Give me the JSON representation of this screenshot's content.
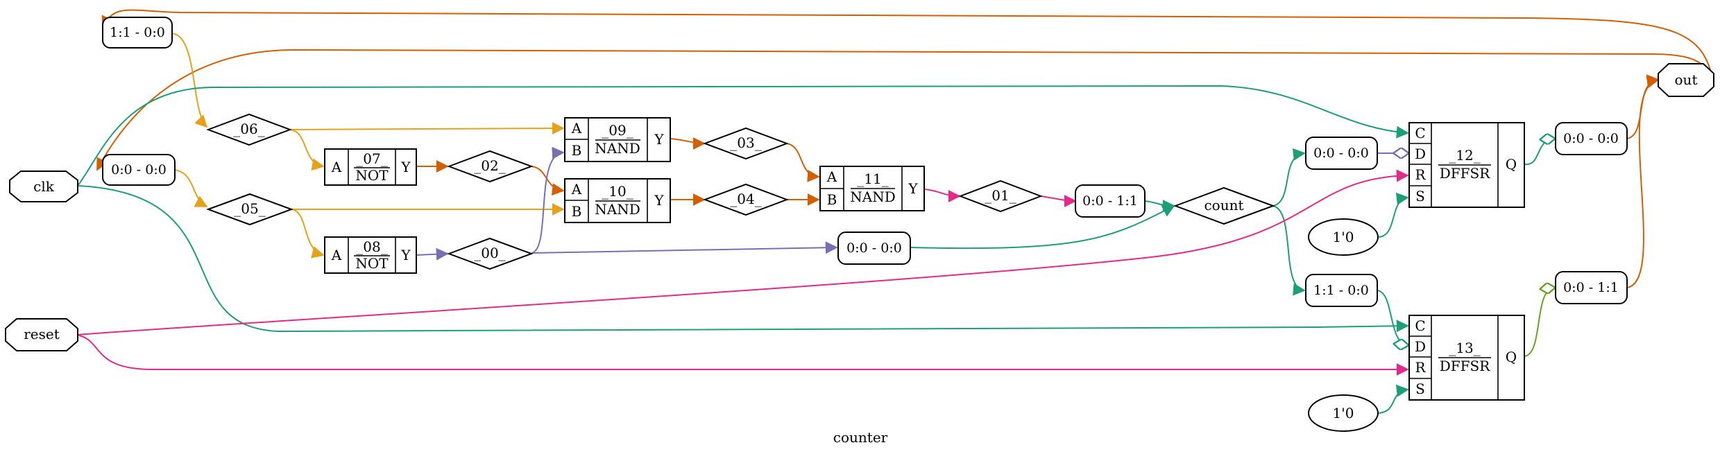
{
  "title": "counter",
  "colors": {
    "orange": "#d55e00",
    "amber": "#e5a11a",
    "teal": "#1c9e77",
    "pink": "#e4298a",
    "purple": "#7570b3",
    "olive": "#66a61e"
  },
  "ports": {
    "clk": "clk",
    "reset": "reset",
    "out": "out"
  },
  "nets": {
    "n06": "_06_",
    "n05": "_05_",
    "n02": "_02_",
    "n00": "_00_",
    "n03": "_03_",
    "n04": "_04_",
    "n01": "_01_",
    "count": "count"
  },
  "slices": {
    "s_top": "1:1 - 0:0",
    "s_clk": "0:0 - 0:0",
    "s_mid": "0:0 - 0:0",
    "s_01": "0:0 - 1:1",
    "s_d12": "0:0 - 0:0",
    "s_q12": "0:0 - 0:0",
    "s_d13": "1:1 - 0:0",
    "s_q13": "0:0 - 1:1"
  },
  "consts": {
    "c12": "1'0",
    "c13": "1'0"
  },
  "cells": {
    "c07": {
      "id": "_07_",
      "type": "NOT",
      "in_a": "A",
      "out_y": "Y"
    },
    "c08": {
      "id": "_08_",
      "type": "NOT",
      "in_a": "A",
      "out_y": "Y"
    },
    "c09": {
      "id": "_09_",
      "type": "NAND",
      "in_a": "A",
      "in_b": "B",
      "out_y": "Y"
    },
    "c10": {
      "id": "_10_",
      "type": "NAND",
      "in_a": "A",
      "in_b": "B",
      "out_y": "Y"
    },
    "c11": {
      "id": "_11_",
      "type": "NAND",
      "in_a": "A",
      "in_b": "B",
      "out_y": "Y"
    },
    "c12": {
      "id": "_12_",
      "type": "DFFSR",
      "in_c": "C",
      "in_d": "D",
      "in_r": "R",
      "in_s": "S",
      "out_q": "Q"
    },
    "c13": {
      "id": "_13_",
      "type": "DFFSR",
      "in_c": "C",
      "in_d": "D",
      "in_r": "R",
      "in_s": "S",
      "out_q": "Q"
    }
  }
}
